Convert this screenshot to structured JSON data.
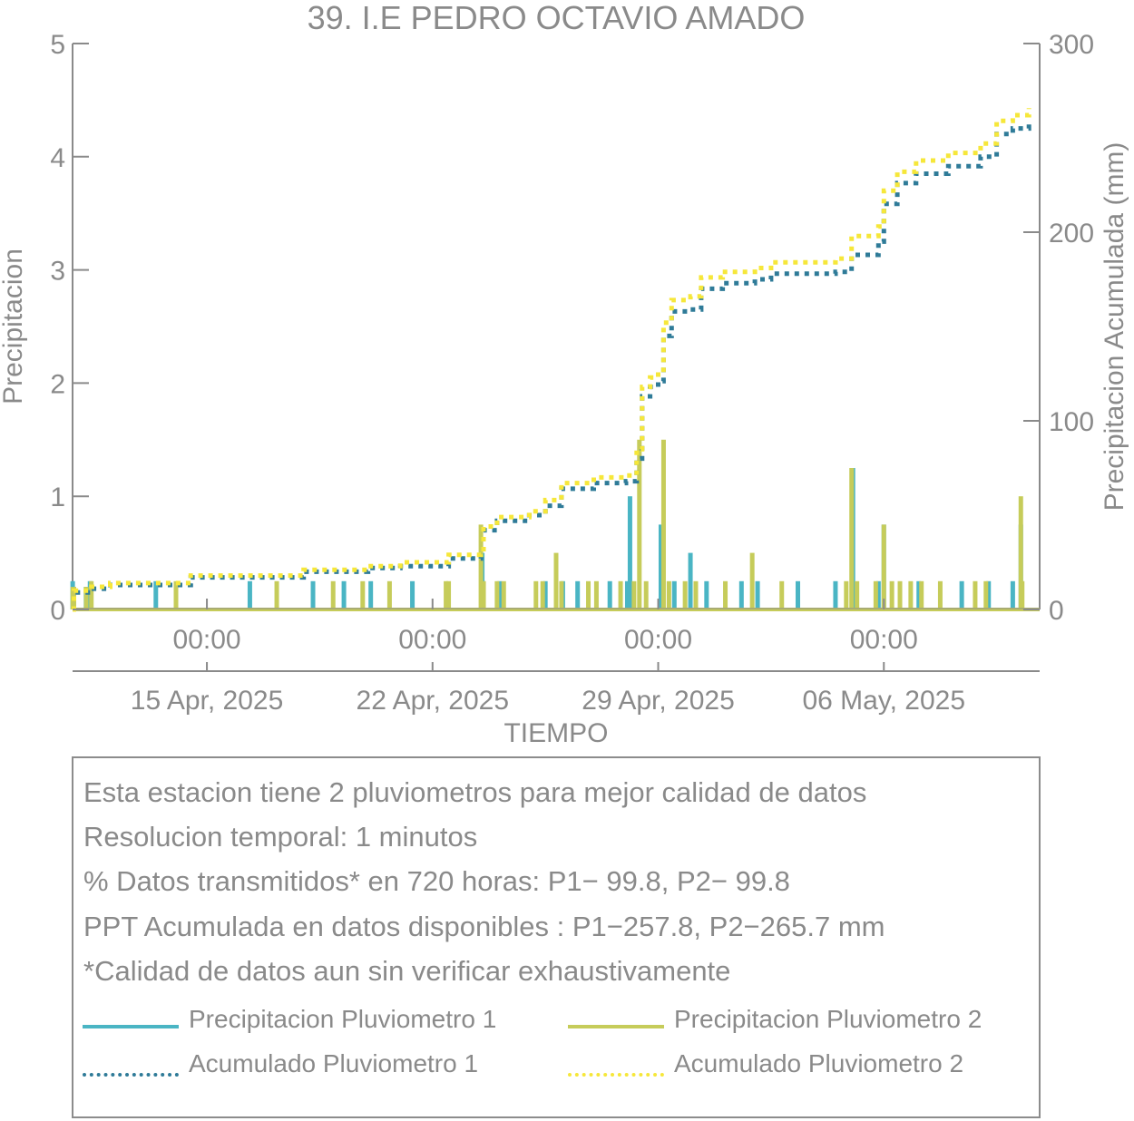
{
  "colors": {
    "p1": "#4ab5c4",
    "p2": "#c6cc5a",
    "acc1": "#2f7b98",
    "acc2": "#f6e73a",
    "axis": "#8a8a8a"
  },
  "chart_data": {
    "type": "bar",
    "title": "39. I.E PEDRO OCTAVIO AMADO",
    "xlabel": "TIEMPO",
    "ylabel": "Precipitacion",
    "y2label": "Precipitacion Acumulada (mm)",
    "ylim": [
      0,
      5
    ],
    "y2lim": [
      0,
      300
    ],
    "xlim": [
      "2025-04-10 20:00",
      "2025-05-10 20:00"
    ],
    "yticks": [
      "0",
      "1",
      "2",
      "3",
      "4",
      "5"
    ],
    "y2ticks": [
      "0",
      "100",
      "200",
      "300"
    ],
    "xticks": [
      {
        "x": "2025-04-15 00:00",
        "time": "00:00",
        "date": "15 Apr, 2025"
      },
      {
        "x": "2025-04-22 00:00",
        "time": "00:00",
        "date": "22 Apr, 2025"
      },
      {
        "x": "2025-04-29 00:00",
        "time": "00:00",
        "date": "29 Apr, 2025"
      },
      {
        "x": "2025-05-06 00:00",
        "time": "00:00",
        "date": "06 May, 2025"
      }
    ],
    "series": [
      {
        "name": "Precipitacion Pluviometro 1",
        "type": "bar",
        "axis": "left",
        "points": [
          [
            "2025-04-10 20:05",
            0.25
          ],
          [
            "2025-04-10 20:40",
            0.2
          ],
          [
            "2025-04-11 06:00",
            0.2
          ],
          [
            "2025-04-11 09:00",
            0.25
          ],
          [
            "2025-04-13 10:00",
            0.25
          ],
          [
            "2025-04-16 08:00",
            0.25
          ],
          [
            "2025-04-18 07:00",
            0.25
          ],
          [
            "2025-04-19 06:00",
            0.25
          ],
          [
            "2025-04-20 02:00",
            0.25
          ],
          [
            "2025-04-21 09:00",
            0.25
          ],
          [
            "2025-04-23 13:00",
            0.5
          ],
          [
            "2025-04-23 13:30",
            0.25
          ],
          [
            "2025-04-24 02:00",
            0.25
          ],
          [
            "2025-04-25 12:00",
            0.25
          ],
          [
            "2025-04-26 01:00",
            0.25
          ],
          [
            "2025-04-26 12:00",
            0.25
          ],
          [
            "2025-04-27 12:00",
            0.25
          ],
          [
            "2025-04-28 01:00",
            0.25
          ],
          [
            "2025-04-28 03:00",
            1.0
          ],
          [
            "2025-04-29 02:00",
            0.75
          ],
          [
            "2025-04-29 12:00",
            0.25
          ],
          [
            "2025-04-30 00:00",
            0.5
          ],
          [
            "2025-04-30 12:00",
            0.25
          ],
          [
            "2025-05-01 14:00",
            0.25
          ],
          [
            "2025-05-02 02:00",
            0.25
          ],
          [
            "2025-05-03 08:00",
            0.25
          ],
          [
            "2025-05-04 12:00",
            0.25
          ],
          [
            "2025-05-05 01:00",
            1.25
          ],
          [
            "2025-05-05 20:00",
            0.25
          ],
          [
            "2025-05-06 00:00",
            0.75
          ],
          [
            "2025-05-07 02:00",
            0.25
          ],
          [
            "2025-05-08 10:00",
            0.25
          ],
          [
            "2025-05-09 06:00",
            0.25
          ],
          [
            "2025-05-10 00:00",
            0.25
          ],
          [
            "2025-05-10 06:00",
            0.75
          ]
        ]
      },
      {
        "name": "Precipitacion Pluviometro 2",
        "type": "bar",
        "axis": "left",
        "points": [
          [
            "2025-04-10 20:10",
            0.2
          ],
          [
            "2025-04-10 21:00",
            0.2
          ],
          [
            "2025-04-11 06:10",
            0.2
          ],
          [
            "2025-04-11 10:00",
            0.25
          ],
          [
            "2025-04-14 01:00",
            0.25
          ],
          [
            "2025-04-17 04:00",
            0.25
          ],
          [
            "2025-04-18 22:00",
            0.25
          ],
          [
            "2025-04-19 20:00",
            0.25
          ],
          [
            "2025-04-20 16:00",
            0.25
          ],
          [
            "2025-04-22 10:00",
            0.25
          ],
          [
            "2025-04-22 12:00",
            0.25
          ],
          [
            "2025-04-23 12:00",
            0.75
          ],
          [
            "2025-04-23 14:00",
            0.25
          ],
          [
            "2025-04-24 00:00",
            0.25
          ],
          [
            "2025-04-24 05:00",
            0.25
          ],
          [
            "2025-04-25 05:00",
            0.25
          ],
          [
            "2025-04-25 10:00",
            0.25
          ],
          [
            "2025-04-25 20:00",
            0.5
          ],
          [
            "2025-04-26 00:00",
            0.25
          ],
          [
            "2025-04-26 20:00",
            0.25
          ],
          [
            "2025-04-27 02:00",
            0.25
          ],
          [
            "2025-04-27 20:00",
            0.25
          ],
          [
            "2025-04-28 06:00",
            0.25
          ],
          [
            "2025-04-28 10:00",
            1.5
          ],
          [
            "2025-04-28 15:00",
            0.25
          ],
          [
            "2025-04-29 04:00",
            1.5
          ],
          [
            "2025-04-29 08:00",
            0.25
          ],
          [
            "2025-04-29 20:00",
            0.25
          ],
          [
            "2025-04-30 04:00",
            0.25
          ],
          [
            "2025-05-01 02:00",
            0.25
          ],
          [
            "2025-05-01 22:00",
            0.5
          ],
          [
            "2025-05-02 20:00",
            0.25
          ],
          [
            "2025-05-04 20:00",
            0.25
          ],
          [
            "2025-05-05 00:00",
            1.25
          ],
          [
            "2025-05-05 04:00",
            0.25
          ],
          [
            "2025-05-05 18:00",
            0.25
          ],
          [
            "2025-05-06 00:00",
            0.75
          ],
          [
            "2025-05-06 06:00",
            0.25
          ],
          [
            "2025-05-06 12:00",
            0.25
          ],
          [
            "2025-05-06 20:00",
            0.25
          ],
          [
            "2025-05-07 04:00",
            0.25
          ],
          [
            "2025-05-07 18:00",
            0.25
          ],
          [
            "2025-05-08 20:00",
            0.25
          ],
          [
            "2025-05-09 04:00",
            0.25
          ],
          [
            "2025-05-10 06:00",
            1.0
          ],
          [
            "2025-05-10 07:00",
            0.25
          ]
        ]
      },
      {
        "name": "Acumulado Pluviometro 1",
        "type": "line",
        "axis": "right",
        "points": [
          [
            "2025-04-10 20:00",
            0
          ],
          [
            "2025-04-10 21:00",
            9
          ],
          [
            "2025-04-11 10:00",
            11
          ],
          [
            "2025-04-12 00:00",
            13
          ],
          [
            "2025-04-13 10:00",
            13
          ],
          [
            "2025-04-14 12:00",
            17
          ],
          [
            "2025-04-17 12:00",
            17
          ],
          [
            "2025-04-18 00:00",
            20
          ],
          [
            "2025-04-19 12:00",
            20
          ],
          [
            "2025-04-20 00:00",
            22
          ],
          [
            "2025-04-21 00:00",
            23
          ],
          [
            "2025-04-22 12:00",
            27
          ],
          [
            "2025-04-23 12:00",
            28
          ],
          [
            "2025-04-23 14:00",
            42
          ],
          [
            "2025-04-24 00:00",
            47
          ],
          [
            "2025-04-25 00:00",
            50
          ],
          [
            "2025-04-25 12:00",
            55
          ],
          [
            "2025-04-26 00:00",
            64
          ],
          [
            "2025-04-27 00:00",
            67
          ],
          [
            "2025-04-28 00:00",
            68
          ],
          [
            "2025-04-28 08:00",
            80
          ],
          [
            "2025-04-28 12:00",
            113
          ],
          [
            "2025-04-28 18:00",
            118
          ],
          [
            "2025-04-29 00:00",
            121
          ],
          [
            "2025-04-29 04:00",
            145
          ],
          [
            "2025-04-29 10:00",
            158
          ],
          [
            "2025-04-30 00:00",
            159
          ],
          [
            "2025-04-30 08:00",
            170
          ],
          [
            "2025-05-01 00:00",
            173
          ],
          [
            "2025-05-02 00:00",
            175
          ],
          [
            "2025-05-02 12:00",
            178
          ],
          [
            "2025-05-04 12:00",
            179
          ],
          [
            "2025-05-05 00:00",
            188
          ],
          [
            "2025-05-05 20:00",
            195
          ],
          [
            "2025-05-06 00:00",
            215
          ],
          [
            "2025-05-06 10:00",
            226
          ],
          [
            "2025-05-07 00:00",
            231
          ],
          [
            "2025-05-08 00:00",
            235
          ],
          [
            "2025-05-09 00:00",
            240
          ],
          [
            "2025-05-09 12:00",
            252
          ],
          [
            "2025-05-10 00:00",
            255
          ],
          [
            "2025-05-10 12:00",
            257.8
          ]
        ]
      },
      {
        "name": "Acumulado Pluviometro 2",
        "type": "line",
        "axis": "right",
        "points": [
          [
            "2025-04-10 20:00",
            0
          ],
          [
            "2025-04-10 21:00",
            10
          ],
          [
            "2025-04-11 10:00",
            12
          ],
          [
            "2025-04-12 00:00",
            14
          ],
          [
            "2025-04-13 10:00",
            14
          ],
          [
            "2025-04-14 12:00",
            18
          ],
          [
            "2025-04-17 12:00",
            18
          ],
          [
            "2025-04-18 00:00",
            21
          ],
          [
            "2025-04-19 12:00",
            21
          ],
          [
            "2025-04-20 00:00",
            23
          ],
          [
            "2025-04-21 00:00",
            25
          ],
          [
            "2025-04-22 12:00",
            29
          ],
          [
            "2025-04-23 12:00",
            30
          ],
          [
            "2025-04-23 14:00",
            44
          ],
          [
            "2025-04-24 00:00",
            49
          ],
          [
            "2025-04-25 00:00",
            52
          ],
          [
            "2025-04-25 12:00",
            58
          ],
          [
            "2025-04-26 00:00",
            67
          ],
          [
            "2025-04-27 00:00",
            70
          ],
          [
            "2025-04-28 00:00",
            71
          ],
          [
            "2025-04-28 08:00",
            85
          ],
          [
            "2025-04-28 12:00",
            118
          ],
          [
            "2025-04-28 18:00",
            123
          ],
          [
            "2025-04-29 00:00",
            127
          ],
          [
            "2025-04-29 04:00",
            152
          ],
          [
            "2025-04-29 10:00",
            164
          ],
          [
            "2025-04-30 00:00",
            166
          ],
          [
            "2025-04-30 08:00",
            176
          ],
          [
            "2025-05-01 00:00",
            179
          ],
          [
            "2025-05-02 00:00",
            181
          ],
          [
            "2025-05-02 12:00",
            184
          ],
          [
            "2025-05-04 12:00",
            186
          ],
          [
            "2025-05-05 00:00",
            198
          ],
          [
            "2025-05-05 20:00",
            203
          ],
          [
            "2025-05-06 00:00",
            222
          ],
          [
            "2025-05-06 10:00",
            232
          ],
          [
            "2025-05-07 00:00",
            238
          ],
          [
            "2025-05-08 00:00",
            242
          ],
          [
            "2025-05-09 00:00",
            247
          ],
          [
            "2025-05-09 12:00",
            259
          ],
          [
            "2025-05-10 00:00",
            262
          ],
          [
            "2025-05-10 12:00",
            265.7
          ]
        ]
      }
    ]
  },
  "info": {
    "lines": [
      "Esta estacion tiene 2 pluviometros para mejor calidad de datos",
      "Resolucion temporal: 1 minutos",
      "% Datos transmitidos* en 720 horas: P1− 99.8, P2− 99.8",
      "PPT Acumulada en datos disponibles : P1−257.8, P2−265.7 mm",
      "*Calidad de datos aun sin verificar exhaustivamente"
    ],
    "legend": [
      {
        "label": "Precipitacion Pluviometro 1",
        "style": "solid",
        "color": "#4ab5c4"
      },
      {
        "label": "Precipitacion Pluviometro 2",
        "style": "solid",
        "color": "#c6cc5a"
      },
      {
        "label": "Acumulado Pluviometro 1",
        "style": "dotted",
        "color": "#2f7b98"
      },
      {
        "label": "Acumulado Pluviometro 2",
        "style": "dotted",
        "color": "#f6e73a"
      }
    ]
  }
}
